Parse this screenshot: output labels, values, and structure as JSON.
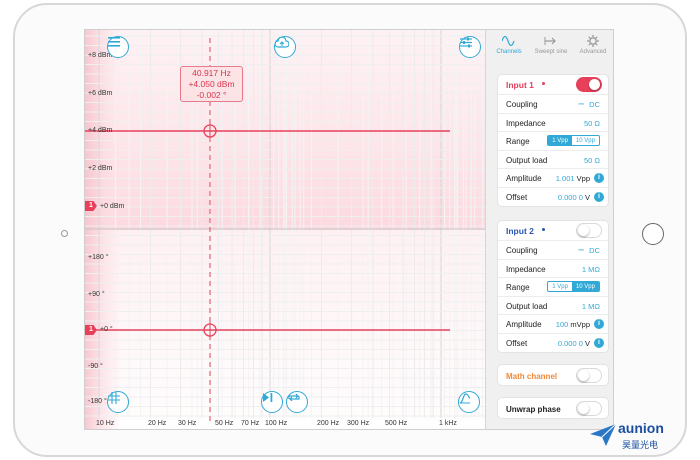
{
  "plot": {
    "y_labels_mag": [
      "+8 dBm",
      "+6 dBm",
      "+4 dBm",
      "+2 dBm",
      "+0 dBm"
    ],
    "y_labels_phase": [
      "+180 °",
      "+90 °",
      "+0 °",
      "-90 °",
      "-180 °"
    ],
    "x_labels": [
      "10 Hz",
      "20 Hz",
      "30 Hz",
      "50 Hz",
      "70 Hz",
      "100 Hz",
      "200 Hz",
      "300 Hz",
      "500 Hz",
      "1 kHz"
    ],
    "cursor": {
      "freq": "40.917 Hz",
      "mag": "+4.050 dBm",
      "phase": "-0.002 °"
    },
    "marker_mag": "1",
    "marker_phase": "1",
    "accent": "#e8405a",
    "button_color": "#30a9d6",
    "icons": [
      "menu-icon",
      "cloud-upload-icon",
      "sliders-icon",
      "grid-icon",
      "play-pause-icon",
      "loop-icon",
      "autoscale-icon"
    ]
  },
  "tabs": [
    {
      "label": "Channels",
      "icon": "wave-icon"
    },
    {
      "label": "Sweept sine",
      "icon": "arrow-icon"
    },
    {
      "label": "Advanced",
      "icon": "gear-icon"
    }
  ],
  "input1": {
    "title": "Input 1",
    "enabled": true,
    "coupling_label": "Coupling",
    "coupling_value": "DC",
    "impedance_label": "Impedance",
    "impedance_value": "50 Ω",
    "range_label": "Range",
    "range_options": [
      "1 Vpp",
      "10 Vpp"
    ],
    "range_selected": "1 Vpp",
    "output_label": "Output load",
    "output_value": "50 Ω",
    "amplitude_label": "Amplitude",
    "amplitude_value": "1.001",
    "amplitude_unit": "Vpp",
    "offset_label": "Offset",
    "offset_value": "0.000 0",
    "offset_unit": "V"
  },
  "input2": {
    "title": "Input 2",
    "enabled": false,
    "coupling_label": "Coupling",
    "coupling_value": "DC",
    "impedance_label": "Impedance",
    "impedance_value": "1 MΩ",
    "range_label": "Range",
    "range_options": [
      "1 Vpp",
      "10 Vpp"
    ],
    "range_selected": "10 Vpp",
    "output_label": "Output load",
    "output_value": "1 MΩ",
    "amplitude_label": "Amplitude",
    "amplitude_value": "100",
    "amplitude_unit": "mVpp",
    "offset_label": "Offset",
    "offset_value": "0.000 0",
    "offset_unit": "V"
  },
  "math_channel": {
    "label": "Math channel",
    "enabled": false,
    "color": "#f08a3a"
  },
  "unwrap_phase": {
    "label": "Unwrap phase",
    "enabled": false
  },
  "watermark": {
    "en": "aunion",
    "cn": "昊量光电"
  }
}
